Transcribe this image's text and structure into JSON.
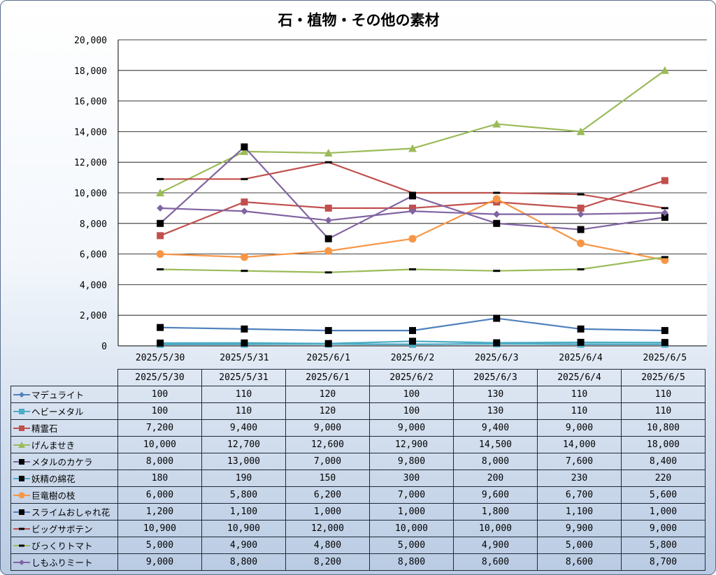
{
  "chart_data": {
    "type": "line",
    "title": "石・植物・その他の素材",
    "categories": [
      "2025/5/30",
      "2025/5/31",
      "2025/6/1",
      "2025/6/2",
      "2025/6/3",
      "2025/6/4",
      "2025/6/5"
    ],
    "ylim": [
      0,
      20000
    ],
    "yticks": [
      "0",
      "2,000",
      "4,000",
      "6,000",
      "8,000",
      "10,000",
      "12,000",
      "14,000",
      "16,000",
      "18,000",
      "20,000"
    ],
    "ytick_values": [
      0,
      2000,
      4000,
      6000,
      8000,
      10000,
      12000,
      14000,
      16000,
      18000,
      20000
    ],
    "grid": true,
    "legend": "data-table",
    "series": [
      {
        "name": "マデュライト",
        "color": "#4f81bd",
        "marker": "diamond",
        "values": [
          100,
          110,
          120,
          100,
          130,
          110,
          110
        ],
        "labels": [
          "100",
          "110",
          "120",
          "100",
          "130",
          "110",
          "110"
        ]
      },
      {
        "name": "ヘビーメタル",
        "color": "#4bacc6",
        "marker": "square",
        "values": [
          100,
          110,
          120,
          100,
          130,
          110,
          110
        ],
        "labels": [
          "100",
          "110",
          "120",
          "100",
          "130",
          "110",
          "110"
        ]
      },
      {
        "name": "精霊石",
        "color": "#c0504d",
        "marker": "square",
        "values": [
          7200,
          9400,
          9000,
          9000,
          9400,
          9000,
          10800
        ],
        "labels": [
          "7,200",
          "9,400",
          "9,000",
          "9,000",
          "9,400",
          "9,000",
          "10,800"
        ]
      },
      {
        "name": "げんませき",
        "color": "#9bbb59",
        "marker": "triangle",
        "values": [
          10000,
          12700,
          12600,
          12900,
          14500,
          14000,
          18000
        ],
        "labels": [
          "10,000",
          "12,700",
          "12,600",
          "12,900",
          "14,500",
          "14,000",
          "18,000"
        ]
      },
      {
        "name": "メタルのカケラ",
        "color": "#8064a2",
        "marker": "blacksquare",
        "values": [
          8000,
          13000,
          7000,
          9800,
          8000,
          7600,
          8400
        ],
        "labels": [
          "8,000",
          "13,000",
          "7,000",
          "9,800",
          "8,000",
          "7,600",
          "8,400"
        ]
      },
      {
        "name": "妖精の綿花",
        "color": "#4bacc6",
        "marker": "blacksquare",
        "values": [
          180,
          190,
          150,
          300,
          200,
          230,
          220
        ],
        "labels": [
          "180",
          "190",
          "150",
          "300",
          "200",
          "230",
          "220"
        ]
      },
      {
        "name": "巨竜樹の枝",
        "color": "#f79646",
        "marker": "circle",
        "values": [
          6000,
          5800,
          6200,
          7000,
          9600,
          6700,
          5600
        ],
        "labels": [
          "6,000",
          "5,800",
          "6,200",
          "7,000",
          "9,600",
          "6,700",
          "5,600"
        ]
      },
      {
        "name": "スライムおしゃれ花",
        "color": "#4f81bd",
        "marker": "blacksquare",
        "values": [
          1200,
          1100,
          1000,
          1000,
          1800,
          1100,
          1000
        ],
        "labels": [
          "1,200",
          "1,100",
          "1,000",
          "1,000",
          "1,800",
          "1,100",
          "1,000"
        ]
      },
      {
        "name": "ビッグサボテン",
        "color": "#c0504d",
        "marker": "dash",
        "values": [
          10900,
          10900,
          12000,
          10000,
          10000,
          9900,
          9000
        ],
        "labels": [
          "10,900",
          "10,900",
          "12,000",
          "10,000",
          "10,000",
          "9,900",
          "9,000"
        ]
      },
      {
        "name": "びっくりトマト",
        "color": "#9bbb59",
        "marker": "dash",
        "values": [
          5000,
          4900,
          4800,
          5000,
          4900,
          5000,
          5800
        ],
        "labels": [
          "5,000",
          "4,900",
          "4,800",
          "5,000",
          "4,900",
          "5,000",
          "5,800"
        ]
      },
      {
        "name": "しもふりミート",
        "color": "#8064a2",
        "marker": "diamond",
        "values": [
          9000,
          8800,
          8200,
          8800,
          8600,
          8600,
          8700
        ],
        "labels": [
          "9,000",
          "8,800",
          "8,200",
          "8,800",
          "8,600",
          "8,600",
          "8,700"
        ]
      }
    ]
  }
}
